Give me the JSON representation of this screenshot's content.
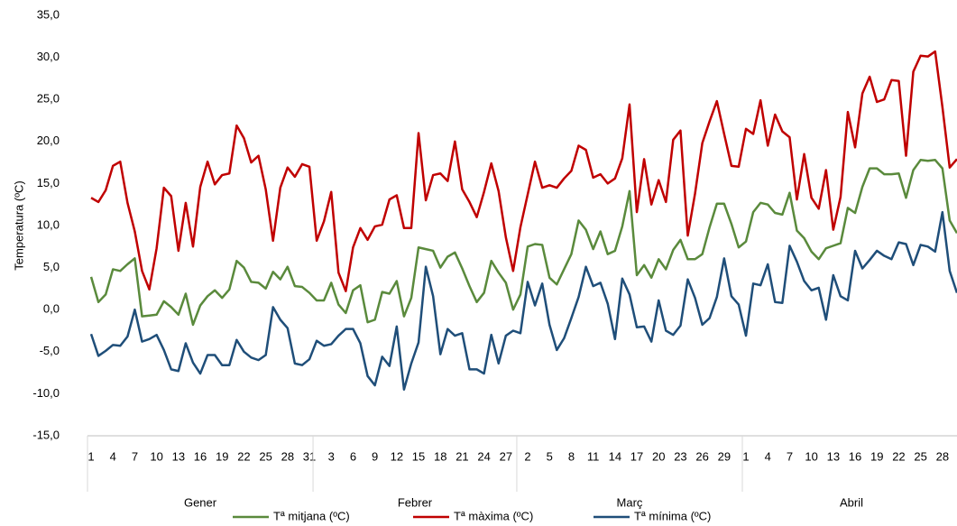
{
  "chart_data": {
    "type": "line",
    "ylabel": "Temperatura  (ºC)",
    "ylim": [
      -15,
      35
    ],
    "yticks": [
      {
        "value": -15,
        "label": "-15,0"
      },
      {
        "value": -10,
        "label": "-10,0"
      },
      {
        "value": -5,
        "label": "-5,0"
      },
      {
        "value": 0,
        "label": "0,0"
      },
      {
        "value": 5,
        "label": "5,0"
      },
      {
        "value": 10,
        "label": "10,0"
      },
      {
        "value": 15,
        "label": "15,0"
      },
      {
        "value": 20,
        "label": "20,0"
      },
      {
        "value": 25,
        "label": "25,0"
      },
      {
        "value": 30,
        "label": "30,0"
      },
      {
        "value": 35,
        "label": "35,0"
      }
    ],
    "grid": false,
    "legend": "bottom",
    "categories": [
      "1",
      null,
      null,
      "4",
      null,
      null,
      "7",
      null,
      null,
      "10",
      null,
      null,
      "13",
      null,
      null,
      "16",
      null,
      null,
      "19",
      null,
      null,
      "22",
      null,
      null,
      "25",
      null,
      null,
      "28",
      null,
      null,
      "31",
      null,
      null,
      "3",
      null,
      null,
      "6",
      null,
      null,
      "9",
      null,
      null,
      "12",
      null,
      null,
      "15",
      null,
      null,
      "18",
      null,
      null,
      "21",
      null,
      null,
      "24",
      null,
      null,
      "27",
      null,
      null,
      "2",
      null,
      null,
      "5",
      null,
      null,
      "8",
      null,
      null,
      "11",
      null,
      null,
      "14",
      null,
      null,
      "17",
      null,
      null,
      "20",
      null,
      null,
      "23",
      null,
      null,
      "26",
      null,
      null,
      "29",
      null,
      null,
      "1",
      null,
      null,
      "4",
      null,
      null,
      "7",
      null,
      null,
      "10",
      null,
      null,
      "13",
      null,
      null,
      "16",
      null,
      null,
      "19",
      null,
      null,
      "22",
      null,
      null,
      "25",
      null,
      null,
      "28",
      null,
      null
    ],
    "groups": [
      {
        "label": "Gener",
        "size": 31
      },
      {
        "label": "Febrer",
        "size": 28
      },
      {
        "label": "Març",
        "size": 31
      },
      {
        "label": "Abril",
        "size": 30
      }
    ],
    "series": [
      {
        "name": "Tª mitjana (ºC)",
        "color": "#5a8a3c",
        "values": [
          3.9,
          0.9,
          1.8,
          4.8,
          4.6,
          5.4,
          6.1,
          -0.8,
          -0.7,
          -0.6,
          1.0,
          0.3,
          -0.6,
          1.9,
          -1.8,
          0.5,
          1.6,
          2.3,
          1.4,
          2.4,
          5.8,
          5.0,
          3.3,
          3.2,
          2.5,
          4.5,
          3.6,
          5.1,
          2.8,
          2.7,
          2.0,
          1.1,
          1.1,
          3.2,
          0.6,
          -0.4,
          2.3,
          2.9,
          -1.5,
          -1.2,
          2.1,
          1.9,
          3.4,
          -0.8,
          1.4,
          7.4,
          7.2,
          7.0,
          5.0,
          6.3,
          6.8,
          4.9,
          2.8,
          0.9,
          2.0,
          5.8,
          4.4,
          3.2,
          0.0,
          1.8,
          7.5,
          7.8,
          7.7,
          3.8,
          3.0,
          4.8,
          6.6,
          10.6,
          9.5,
          7.2,
          9.3,
          6.6,
          7.0,
          9.9,
          14.1,
          4.1,
          5.3,
          3.8,
          6.0,
          4.8,
          7.1,
          8.3,
          6.0,
          6.0,
          6.6,
          9.8,
          12.6,
          12.6,
          10.2,
          7.4,
          8.1,
          11.6,
          12.7,
          12.5,
          11.5,
          11.3,
          13.9,
          9.4,
          8.5,
          6.9,
          6.0,
          7.3,
          7.6,
          7.9,
          12.1,
          11.5,
          14.6,
          16.8,
          16.8,
          16.1,
          16.1,
          16.2,
          13.3,
          16.6,
          17.8,
          17.7,
          17.8,
          16.8,
          10.6,
          9.1
        ]
      },
      {
        "name": "Tª màxima (ºC)",
        "color": "#c00000",
        "values": [
          13.3,
          12.8,
          14.2,
          17.1,
          17.6,
          12.7,
          9.3,
          4.6,
          2.4,
          7.3,
          14.5,
          13.5,
          7.0,
          12.7,
          7.5,
          14.6,
          17.6,
          14.9,
          16.0,
          16.2,
          21.9,
          20.4,
          17.5,
          18.3,
          14.3,
          8.2,
          14.5,
          16.9,
          15.8,
          17.3,
          17.0,
          8.2,
          10.5,
          14.0,
          4.4,
          2.2,
          7.4,
          9.7,
          8.3,
          9.9,
          10.1,
          13.1,
          13.6,
          9.7,
          9.7,
          21.0,
          13.0,
          16.0,
          16.2,
          15.3,
          20.0,
          14.3,
          12.8,
          11.0,
          14.0,
          17.4,
          14.1,
          8.6,
          4.6,
          9.8,
          13.7,
          17.6,
          14.5,
          14.8,
          14.5,
          15.6,
          16.5,
          19.5,
          19.0,
          15.7,
          16.1,
          15.0,
          15.6,
          18.0,
          24.4,
          11.6,
          17.9,
          12.5,
          15.4,
          12.8,
          20.2,
          21.3,
          8.8,
          13.8,
          19.8,
          22.4,
          24.8,
          20.9,
          17.1,
          17.0,
          21.5,
          20.9,
          24.9,
          19.5,
          23.2,
          21.2,
          20.5,
          13.1,
          18.5,
          13.3,
          12.0,
          16.6,
          9.5,
          13.4,
          23.5,
          19.3,
          25.7,
          27.7,
          24.7,
          25.0,
          27.3,
          27.2,
          18.3,
          28.3,
          30.2,
          30.1,
          30.7,
          24.1,
          16.9,
          17.9
        ]
      },
      {
        "name": "Tª mínima (ºC)",
        "color": "#1f4e79",
        "values": [
          -2.9,
          -5.5,
          -4.9,
          -4.2,
          -4.3,
          -3.2,
          0.0,
          -3.8,
          -3.5,
          -3.0,
          -4.8,
          -7.1,
          -7.3,
          -4.0,
          -6.3,
          -7.6,
          -5.4,
          -5.4,
          -6.6,
          -6.6,
          -3.6,
          -5.0,
          -5.7,
          -6.0,
          -5.4,
          0.3,
          -1.2,
          -2.2,
          -6.4,
          -6.6,
          -5.9,
          -3.7,
          -4.3,
          -4.1,
          -3.1,
          -2.3,
          -2.3,
          -4.0,
          -7.9,
          -9.0,
          -5.6,
          -6.7,
          -2.0,
          -9.5,
          -6.4,
          -3.9,
          5.1,
          1.6,
          -5.3,
          -2.3,
          -3.1,
          -2.8,
          -7.1,
          -7.1,
          -7.6,
          -3.0,
          -6.4,
          -3.1,
          -2.5,
          -2.8,
          3.3,
          0.5,
          3.1,
          -1.8,
          -4.8,
          -3.4,
          -1.0,
          1.5,
          5.1,
          2.8,
          3.2,
          0.7,
          -3.5,
          3.7,
          1.8,
          -2.1,
          -2.0,
          -3.8,
          1.1,
          -2.5,
          -3.0,
          -1.9,
          3.6,
          1.4,
          -1.8,
          -1.0,
          1.5,
          6.1,
          1.6,
          0.6,
          -3.1,
          3.1,
          2.9,
          5.4,
          0.9,
          0.8,
          7.6,
          5.7,
          3.4,
          2.3,
          2.6,
          -1.2,
          4.1,
          1.6,
          1.1,
          7.0,
          4.9,
          5.9,
          7.0,
          6.4,
          6.0,
          8.0,
          7.8,
          5.3,
          7.7,
          7.5,
          6.9,
          11.6,
          4.6,
          2.0
        ]
      }
    ]
  }
}
